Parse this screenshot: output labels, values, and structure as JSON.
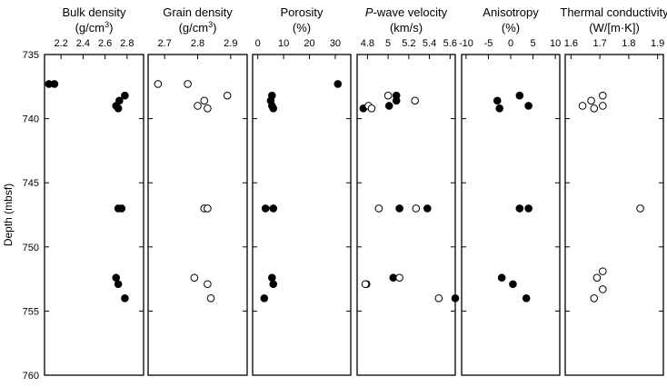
{
  "chart_data": [
    {
      "type": "scatter",
      "title_lines": [
        "Bulk density",
        "(g/cm",
        "3",
        ")"
      ],
      "xlim": [
        2.05,
        2.95
      ],
      "xticks": [
        2.2,
        2.4,
        2.6,
        2.8
      ],
      "xtick_labels": [
        "2.2",
        "2.4",
        "2.6",
        "2.8"
      ],
      "ylabel": "Depth (mbsf)",
      "ylim": [
        735,
        760
      ],
      "yticks": [
        735,
        740,
        745,
        750,
        755,
        760
      ],
      "ytick_labels": [
        "735",
        "740",
        "745",
        "750",
        "755",
        "760"
      ],
      "series": [
        {
          "marker": "filled",
          "points": [
            [
              2.09,
              737.3
            ],
            [
              2.14,
              737.3
            ],
            [
              2.78,
              738.2
            ],
            [
              2.73,
              738.6
            ],
            [
              2.7,
              739.0
            ],
            [
              2.72,
              739.2
            ],
            [
              2.72,
              747.0
            ],
            [
              2.75,
              747.0
            ],
            [
              2.7,
              752.4
            ],
            [
              2.72,
              752.9
            ],
            [
              2.78,
              754.0
            ]
          ]
        }
      ]
    },
    {
      "type": "scatter",
      "title_lines": [
        "Grain density",
        "(g/cm",
        "3",
        ")"
      ],
      "xlim": [
        2.65,
        2.95
      ],
      "xticks": [
        2.7,
        2.8,
        2.9
      ],
      "xtick_labels": [
        "2.7",
        "2.8",
        "2.9"
      ],
      "ylim": [
        735,
        760
      ],
      "series": [
        {
          "marker": "open",
          "points": [
            [
              2.68,
              737.3
            ],
            [
              2.77,
              737.3
            ],
            [
              2.89,
              738.2
            ],
            [
              2.82,
              738.6
            ],
            [
              2.8,
              739.0
            ],
            [
              2.83,
              739.2
            ],
            [
              2.82,
              747.0
            ],
            [
              2.83,
              747.0
            ],
            [
              2.79,
              752.4
            ],
            [
              2.83,
              752.9
            ],
            [
              2.84,
              754.0
            ]
          ]
        }
      ]
    },
    {
      "type": "scatter",
      "title_lines": [
        "Porosity",
        "(%)"
      ],
      "xlim": [
        -2,
        36
      ],
      "xticks": [
        0,
        10,
        20,
        30
      ],
      "xtick_labels": [
        "0",
        "10",
        "20",
        "30"
      ],
      "ylim": [
        735,
        760
      ],
      "series": [
        {
          "marker": "filled",
          "points": [
            [
              31,
              737.3
            ],
            [
              5.5,
              738.2
            ],
            [
              5,
              738.6
            ],
            [
              5.5,
              739.0
            ],
            [
              6,
              739.2
            ],
            [
              3,
              747.0
            ],
            [
              6,
              747.0
            ],
            [
              5.5,
              752.4
            ],
            [
              6,
              752.9
            ],
            [
              2.5,
              754.0
            ]
          ]
        }
      ]
    },
    {
      "type": "scatter",
      "title_lines": [
        "P-wave velocity",
        "(km/s)"
      ],
      "title_italic_prefix": "P",
      "xlim": [
        4.7,
        5.65
      ],
      "xticks": [
        4.8,
        5.0,
        5.2,
        5.4,
        5.6
      ],
      "xtick_labels": [
        "4.8",
        "5",
        "5.2",
        "5.4",
        "5.6"
      ],
      "ylim": [
        735,
        760
      ],
      "series": [
        {
          "marker": "filled",
          "points": [
            [
              5.08,
              738.2
            ],
            [
              5.08,
              738.6
            ],
            [
              5.01,
              739.0
            ],
            [
              4.76,
              739.2
            ],
            [
              5.11,
              747.0
            ],
            [
              5.38,
              747.0
            ],
            [
              5.05,
              752.4
            ],
            [
              4.79,
              752.9
            ],
            [
              5.65,
              754.0
            ]
          ]
        },
        {
          "marker": "open",
          "points": [
            [
              5.0,
              738.2
            ],
            [
              5.26,
              738.6
            ],
            [
              4.81,
              739.0
            ],
            [
              4.84,
              739.2
            ],
            [
              4.91,
              747.0
            ],
            [
              5.27,
              747.0
            ],
            [
              5.11,
              752.4
            ],
            [
              4.78,
              752.9
            ],
            [
              5.49,
              754.0
            ]
          ]
        }
      ]
    },
    {
      "type": "scatter",
      "title_lines": [
        "Anisotropy",
        "(%)"
      ],
      "xlim": [
        -11,
        11
      ],
      "xticks": [
        -10,
        -5,
        0,
        5,
        10
      ],
      "xtick_labels": [
        "-10",
        "-5",
        "0",
        "5",
        "10"
      ],
      "ylim": [
        735,
        760
      ],
      "series": [
        {
          "marker": "filled",
          "points": [
            [
              2,
              738.2
            ],
            [
              -3,
              738.6
            ],
            [
              4,
              739.0
            ],
            [
              -2.5,
              739.2
            ],
            [
              2,
              747.0
            ],
            [
              4,
              747.0
            ],
            [
              -2,
              752.4
            ],
            [
              0.5,
              752.9
            ],
            [
              3.5,
              754.0
            ]
          ]
        }
      ]
    },
    {
      "type": "scatter",
      "title_lines": [
        "Thermal conductivity",
        "(W/[m·K])"
      ],
      "xlim": [
        1.58,
        1.92
      ],
      "xticks": [
        1.6,
        1.7,
        1.8,
        1.9
      ],
      "xtick_labels": [
        "1.6",
        "1.7",
        "1.8",
        "1.9"
      ],
      "ylim": [
        735,
        760
      ],
      "series": [
        {
          "marker": "open",
          "points": [
            [
              1.71,
              738.2
            ],
            [
              1.67,
              738.6
            ],
            [
              1.64,
              739.0
            ],
            [
              1.71,
              739.0
            ],
            [
              1.68,
              739.2
            ],
            [
              1.84,
              747.0
            ],
            [
              1.71,
              751.9
            ],
            [
              1.69,
              752.4
            ],
            [
              1.71,
              753.3
            ],
            [
              1.68,
              754.0
            ]
          ]
        }
      ]
    }
  ]
}
